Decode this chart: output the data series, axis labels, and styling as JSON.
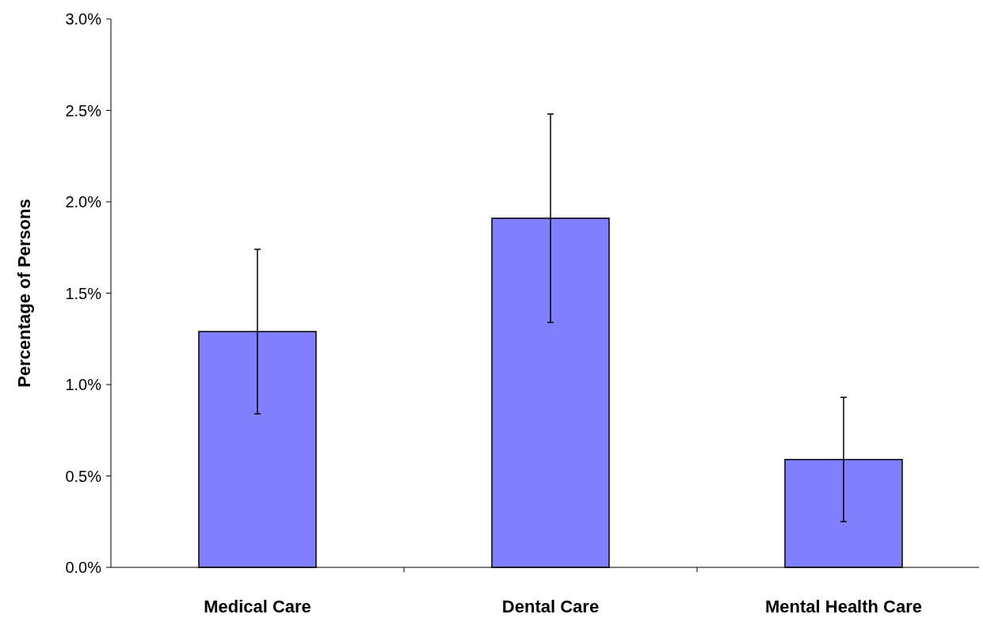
{
  "chart_data": {
    "type": "bar",
    "ylabel": "Percentage of Persons",
    "categories": [
      "Medical Care",
      "Dental Care",
      "Mental Health Care"
    ],
    "values": [
      1.29,
      1.91,
      0.59
    ],
    "errors": [
      0.45,
      0.57,
      0.34
    ],
    "color": "#8080ff",
    "ylim": [
      0,
      3
    ],
    "yticks": [
      {
        "value": 0,
        "label": "0.0%"
      },
      {
        "value": 0.5,
        "label": "0.5%"
      },
      {
        "value": 1,
        "label": "1.0%"
      },
      {
        "value": 1.5,
        "label": "1.5%"
      },
      {
        "value": 2,
        "label": "2.0%"
      },
      {
        "value": 2.5,
        "label": "2.5%"
      },
      {
        "value": 3,
        "label": "3.0%"
      }
    ],
    "grid": false
  }
}
